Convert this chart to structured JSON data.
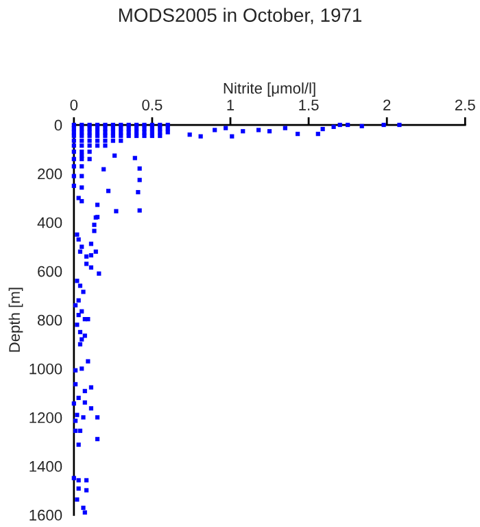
{
  "chart_data": {
    "type": "scatter",
    "title": "MODS2005 in October, 1971",
    "xlabel": "Nitrite [μmol/l]",
    "ylabel": "Depth [m]",
    "xlim": [
      0,
      2.5
    ],
    "xticks": [
      0,
      0.5,
      1,
      1.5,
      2,
      2.5
    ],
    "ylim": [
      1600,
      0
    ],
    "yticks": [
      0,
      200,
      400,
      600,
      800,
      1000,
      1200,
      1400,
      1600
    ],
    "grid": false,
    "marker": "square",
    "series": [
      {
        "color": "#0000ff",
        "x": [
          0.0,
          0.05,
          0.1,
          0.15,
          0.2,
          0.25,
          0.3,
          0.35,
          0.4,
          0.45,
          0.5,
          0.55,
          0.6,
          0.0,
          0.05,
          0.1,
          0.15,
          0.2,
          0.25,
          0.3,
          0.35,
          0.4,
          0.45,
          0.5,
          0.55,
          0.6,
          0.0,
          0.05,
          0.1,
          0.15,
          0.2,
          0.25,
          0.3,
          0.35,
          0.4,
          0.45,
          0.5,
          0.55,
          0.6,
          0.0,
          0.05,
          0.1,
          0.15,
          0.2,
          0.25,
          0.3,
          0.35,
          0.4,
          0.45,
          0.5,
          0.55,
          0.0,
          0.05,
          0.1,
          0.15,
          0.2,
          0.25,
          0.3,
          0.0,
          0.05,
          0.1,
          0.15,
          0.2,
          0.0,
          0.05,
          0.1,
          0.0,
          0.05,
          0.1,
          0.0,
          0.05,
          0.0,
          0.05,
          0.0,
          0.03,
          2.08,
          1.98,
          1.84,
          1.75,
          1.7,
          1.66,
          1.59,
          1.56,
          1.43,
          1.35,
          1.25,
          1.18,
          1.08,
          1.01,
          0.97,
          0.9,
          0.81,
          0.74,
          0.26,
          0.39,
          0.42,
          0.42,
          0.41,
          0.22,
          0.19,
          0.15,
          0.15,
          0.13,
          0.13,
          0.42,
          0.27,
          0.14,
          0.05,
          0.05,
          0.05,
          0.11,
          0.14,
          0.11,
          0.08,
          0.11,
          0.16,
          0.04,
          0.02,
          0.03,
          0.05,
          0.08,
          0.02,
          0.04,
          0.06,
          0.03,
          0.01,
          0.05,
          0.03,
          0.07,
          0.09,
          0.02,
          0.04,
          0.07,
          0.05,
          0.04,
          0.09,
          0.05,
          0.01,
          0.01,
          0.11,
          0.07,
          0.07,
          0.03,
          0.0,
          0.11,
          0.15,
          0.06,
          0.02,
          0.01,
          0.04,
          0.01,
          0.15,
          0.03,
          0.0,
          0.03,
          0.08,
          0.03,
          0.08,
          0.02,
          0.06,
          0.07
        ],
        "values": [
          0,
          0,
          0,
          0,
          0,
          0,
          0,
          0,
          0,
          0,
          0,
          0,
          0,
          15,
          15,
          15,
          15,
          15,
          15,
          15,
          15,
          15,
          15,
          15,
          15,
          15,
          30,
          30,
          30,
          30,
          30,
          30,
          30,
          30,
          30,
          30,
          30,
          30,
          30,
          45,
          45,
          45,
          45,
          45,
          45,
          45,
          45,
          45,
          45,
          45,
          45,
          65,
          65,
          65,
          65,
          65,
          65,
          65,
          85,
          85,
          85,
          85,
          85,
          110,
          110,
          110,
          140,
          140,
          140,
          170,
          170,
          210,
          210,
          250,
          300,
          0,
          0,
          5,
          0,
          0,
          8,
          17,
          37,
          37,
          13,
          26,
          21,
          26,
          47,
          13,
          21,
          47,
          40,
          126,
          136,
          179,
          226,
          276,
          271,
          182,
          328,
          378,
          410,
          435,
          351,
          354,
          380,
          126,
          257,
          313,
          488,
          520,
          535,
          570,
          585,
          610,
          520,
          450,
          470,
          500,
          540,
          640,
          660,
          685,
          720,
          740,
          765,
          780,
          797,
          797,
          820,
          850,
          865,
          880,
          900,
          970,
          1000,
          1007,
          1064,
          1077,
          1092,
          1139,
          1120,
          1143,
          1163,
          1200,
          1200,
          1190,
          1214,
          1255,
          1255,
          1289,
          1312,
          1449,
          1458,
          1458,
          1492,
          1499,
          1537,
          1571,
          1590
        ]
      }
    ]
  }
}
